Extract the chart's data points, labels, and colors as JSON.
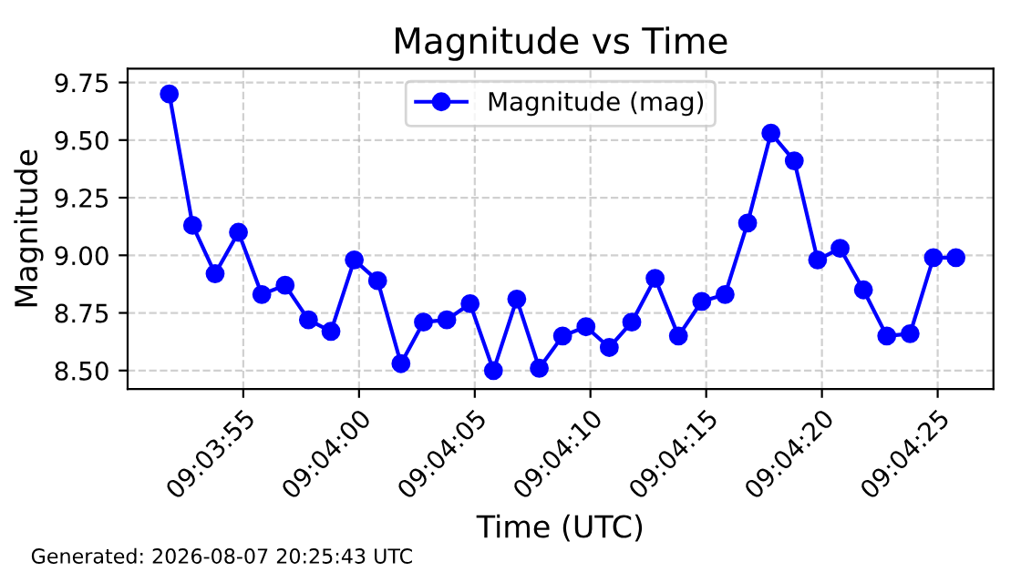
{
  "chart_data": {
    "type": "line",
    "title": "Magnitude vs Time",
    "xlabel": "Time (UTC)",
    "ylabel": "Magnitude",
    "annotations": [
      "Generated: 2026-08-07 20:25:43 UTC"
    ],
    "x": [
      9.06439,
      9.06467,
      9.06494,
      9.06522,
      9.0655,
      9.06578,
      9.06606,
      9.06633,
      9.06661,
      9.06689,
      9.06717,
      9.06744,
      9.06772,
      9.068,
      9.06828,
      9.06856,
      9.06883,
      9.06911,
      9.06939,
      9.06967,
      9.06994,
      9.07022,
      9.0705,
      9.07078,
      9.07106,
      9.07133,
      9.07161,
      9.07189,
      9.07217,
      9.07244,
      9.07272,
      9.073,
      9.07328,
      9.07356,
      9.07383
    ],
    "series": [
      {
        "name": "Magnitude (mag)",
        "color": "#0000ff",
        "values": [
          9.7,
          9.13,
          8.92,
          9.1,
          8.83,
          8.87,
          8.72,
          8.67,
          8.98,
          8.89,
          8.53,
          8.71,
          8.72,
          8.79,
          8.5,
          8.81,
          8.51,
          8.65,
          8.69,
          8.6,
          8.71,
          8.9,
          8.65,
          8.8,
          8.83,
          9.14,
          9.53,
          9.41,
          8.98,
          9.03,
          8.85,
          8.65,
          8.66,
          8.99,
          8.99
        ]
      }
    ],
    "xlim": [
      9.06389,
      9.07428
    ],
    "ylim": [
      8.42,
      9.81
    ],
    "xticks": [
      {
        "value": 9.065278,
        "label": "09:03:55"
      },
      {
        "value": 9.066667,
        "label": "09:04:00"
      },
      {
        "value": 9.068056,
        "label": "09:04:05"
      },
      {
        "value": 9.069444,
        "label": "09:04:10"
      },
      {
        "value": 9.070833,
        "label": "09:04:15"
      },
      {
        "value": 9.072222,
        "label": "09:04:20"
      },
      {
        "value": 9.073611,
        "label": "09:04:25"
      }
    ],
    "yticks": [
      {
        "value": 8.5,
        "label": "8.50"
      },
      {
        "value": 8.75,
        "label": "8.75"
      },
      {
        "value": 9.0,
        "label": "9.00"
      },
      {
        "value": 9.25,
        "label": "9.25"
      },
      {
        "value": 9.5,
        "label": "9.50"
      },
      {
        "value": 9.75,
        "label": "9.75"
      }
    ],
    "grid": true,
    "legend": "top",
    "marker": "circle",
    "line_style": "solid"
  }
}
